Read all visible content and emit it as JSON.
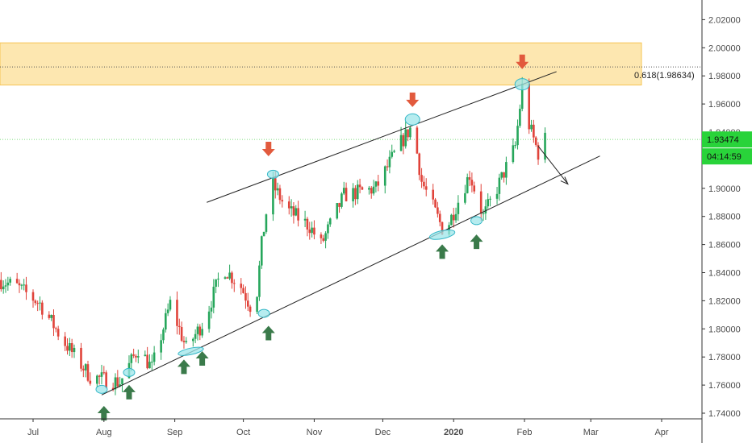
{
  "colors": {
    "up": "#26a65b",
    "down": "#e0433a",
    "zone_fill": "#fde7b0",
    "zone_border": "#f6c453",
    "trendline": "#222222",
    "marker_fill": "#9ee6ea",
    "marker_stroke": "#35b7c7",
    "arrow_up": "#3a7a4a",
    "arrow_down": "#e25a3d",
    "current_price_line": "#7cdc7c",
    "price_tag_bg": "#29d33a"
  },
  "icons": {
    "support_marker": "arrow-up-icon",
    "resistance_marker": "arrow-down-icon",
    "touch_point": "ellipse-marker-icon"
  },
  "chart_data": {
    "type": "candlestick",
    "title": "",
    "y_axis": {
      "ticks": [
        "1.74000",
        "1.76000",
        "1.78000",
        "1.80000",
        "1.82000",
        "1.84000",
        "1.86000",
        "1.88000",
        "1.90000",
        "1.92000",
        "1.94000",
        "1.96000",
        "1.98000",
        "2.00000",
        "2.02000"
      ],
      "ylim": [
        1.7395,
        2.0225
      ]
    },
    "x_axis": {
      "labels": [
        "Jul",
        "Aug",
        "Sep",
        "Oct",
        "Nov",
        "Dec",
        "2020",
        "Feb",
        "Mar",
        "Apr"
      ]
    },
    "current_price": "1.93474",
    "countdown": "04:14:59",
    "fib_level": {
      "label": "0.618(1.98634)",
      "value": 1.98634
    },
    "resistance_zone": {
      "low": 1.9735,
      "high": 2.0035
    },
    "series_anchors": [
      {
        "date": "2019-06-24",
        "price": 1.83
      },
      {
        "date": "2019-07-04",
        "price": 1.818
      },
      {
        "date": "2019-07-14",
        "price": 1.792
      },
      {
        "date": "2019-07-26",
        "price": 1.766
      },
      {
        "date": "2019-08-08",
        "price": 1.762
      },
      {
        "date": "2019-08-16",
        "price": 1.786
      },
      {
        "date": "2019-08-22",
        "price": 1.772
      },
      {
        "date": "2019-08-30",
        "price": 1.818
      },
      {
        "date": "2019-09-06",
        "price": 1.786
      },
      {
        "date": "2019-09-14",
        "price": 1.806
      },
      {
        "date": "2019-09-22",
        "price": 1.844
      },
      {
        "date": "2019-09-30",
        "price": 1.83
      },
      {
        "date": "2019-10-06",
        "price": 1.81
      },
      {
        "date": "2019-10-09",
        "price": 1.86
      },
      {
        "date": "2019-10-13",
        "price": 1.905
      },
      {
        "date": "2019-10-20",
        "price": 1.885
      },
      {
        "date": "2019-10-30",
        "price": 1.873
      },
      {
        "date": "2019-11-04",
        "price": 1.86
      },
      {
        "date": "2019-11-14",
        "price": 1.895
      },
      {
        "date": "2019-11-28",
        "price": 1.9
      },
      {
        "date": "2019-12-08",
        "price": 1.93
      },
      {
        "date": "2019-12-14",
        "price": 1.945
      },
      {
        "date": "2019-12-18",
        "price": 1.905
      },
      {
        "date": "2019-12-28",
        "price": 1.868
      },
      {
        "date": "2020-01-08",
        "price": 1.91
      },
      {
        "date": "2020-01-14",
        "price": 1.88
      },
      {
        "date": "2020-01-20",
        "price": 1.9
      },
      {
        "date": "2020-01-28",
        "price": 1.93
      },
      {
        "date": "2020-01-31",
        "price": 1.972
      },
      {
        "date": "2020-02-03",
        "price": 1.945
      },
      {
        "date": "2020-02-07",
        "price": 1.925
      },
      {
        "date": "2020-02-10",
        "price": 1.935
      }
    ],
    "trendlines": [
      {
        "name": "channel-top",
        "from": {
          "date": "2019-09-15",
          "price": 1.89
        },
        "to": {
          "date": "2020-02-15",
          "price": 1.983
        }
      },
      {
        "name": "channel-bottom",
        "from": {
          "date": "2019-07-31",
          "price": 1.753
        },
        "to": {
          "date": "2020-03-05",
          "price": 1.923
        }
      },
      {
        "name": "projection",
        "from": {
          "date": "2020-02-07",
          "price": 1.93
        },
        "to": {
          "date": "2020-02-20",
          "price": 1.903
        }
      }
    ],
    "touch_points": [
      {
        "date": "2019-07-31",
        "price": 1.757
      },
      {
        "date": "2019-08-12",
        "price": 1.769
      },
      {
        "date": "2019-09-08",
        "price": 1.784
      },
      {
        "date": "2019-10-10",
        "price": 1.811
      },
      {
        "date": "2019-10-14",
        "price": 1.91
      },
      {
        "date": "2019-12-14",
        "price": 1.949
      },
      {
        "date": "2019-12-27",
        "price": 1.867
      },
      {
        "date": "2020-01-11",
        "price": 1.877
      },
      {
        "date": "2020-01-31",
        "price": 1.974
      }
    ],
    "support_arrows": [
      {
        "date": "2019-08-01",
        "price": 1.74
      },
      {
        "date": "2019-08-12",
        "price": 1.755
      },
      {
        "date": "2019-09-05",
        "price": 1.773
      },
      {
        "date": "2019-09-13",
        "price": 1.779
      },
      {
        "date": "2019-10-12",
        "price": 1.797
      },
      {
        "date": "2019-12-27",
        "price": 1.855
      },
      {
        "date": "2020-01-11",
        "price": 1.862
      }
    ],
    "resistance_arrows": [
      {
        "date": "2019-10-12",
        "price": 1.928
      },
      {
        "date": "2019-12-14",
        "price": 1.963
      },
      {
        "date": "2020-01-31",
        "price": 1.99
      }
    ]
  }
}
